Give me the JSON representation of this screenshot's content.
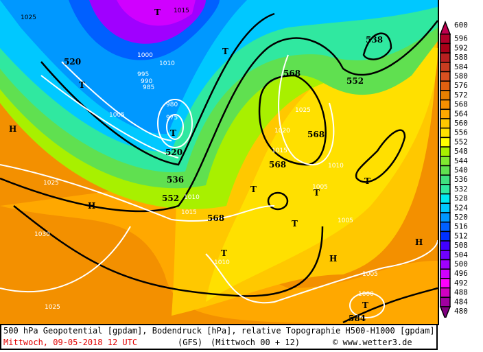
{
  "footer": {
    "line1": "500 hPa Geopotential [gpdam], Bodendruck [hPa], relative Topographie H500-H1000 [gpdam]",
    "date": "Mittwoch, 09-05-2018  12 UTC",
    "model": "(GFS)",
    "run": "(Mittwoch 00 + 12)",
    "copyright": "© www.wetter3.de"
  },
  "legend": {
    "levels": [
      "600",
      "596",
      "592",
      "588",
      "584",
      "580",
      "576",
      "572",
      "568",
      "564",
      "560",
      "556",
      "552",
      "548",
      "544",
      "540",
      "536",
      "532",
      "528",
      "524",
      "520",
      "516",
      "512",
      "508",
      "504",
      "500",
      "496",
      "492",
      "488",
      "484",
      "480"
    ],
    "colors": [
      "#c0004f",
      "#b0002a",
      "#a80018",
      "#b82020",
      "#c83c20",
      "#d85020",
      "#e06010",
      "#e88000",
      "#f89000",
      "#ffa800",
      "#ffc800",
      "#ffe000",
      "#ffff00",
      "#a8f000",
      "#80e830",
      "#60e050",
      "#40e080",
      "#30e8a0",
      "#00e8f0",
      "#00c8ff",
      "#0098ff",
      "#0060ff",
      "#0030ff",
      "#4000ff",
      "#7000ff",
      "#a000ff",
      "#d000ff",
      "#ff00ff",
      "#d000c0",
      "#a000a0",
      "#800080"
    ]
  },
  "map": {
    "labels": [
      "1025",
      "1015",
      "520",
      "1005",
      "1000",
      "995",
      "990",
      "985",
      "980",
      "975",
      "T",
      "520",
      "536",
      "552",
      "568",
      "568",
      "568",
      "568",
      "552",
      "538",
      "1015",
      "1020",
      "1025",
      "1010",
      "1005",
      "1010",
      "1005",
      "1025",
      "1030",
      "1025",
      "1000",
      "584",
      "H",
      "H",
      "H",
      "H",
      "T",
      "T",
      "T",
      "T",
      "T",
      "T",
      "T",
      "T",
      "T",
      "1010",
      "1005",
      "1015",
      "1010"
    ]
  }
}
